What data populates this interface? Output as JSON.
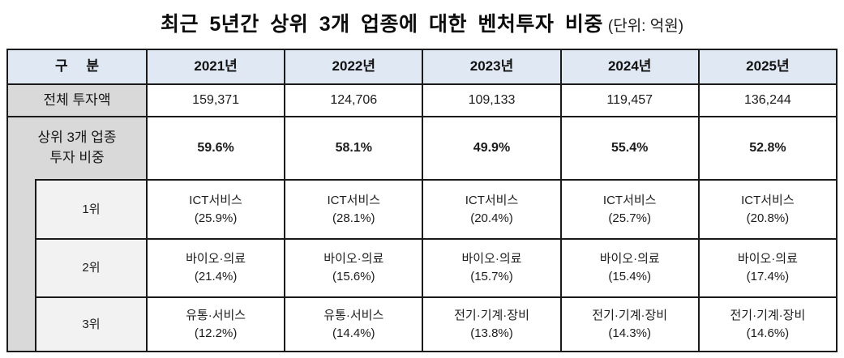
{
  "title": {
    "main": "최근 5년간 상위 3개 업종에 대한 벤처투자 비중",
    "unit": "(단위: 억원)"
  },
  "colors": {
    "header_bg": "#dfe8f3",
    "label_bg": "#d9d9d9",
    "rank_bg": "#f2f2f2",
    "border": "#1a1a1a"
  },
  "table": {
    "corner_label": "구 분",
    "years": [
      "2021년",
      "2022년",
      "2023년",
      "2024년",
      "2025년"
    ],
    "total_row": {
      "label": "전체 투자액",
      "values": [
        "159,371",
        "124,706",
        "109,133",
        "119,457",
        "136,244"
      ]
    },
    "share_row": {
      "label_line1": "상위 3개 업종",
      "label_line2": "투자 비중",
      "values": [
        "59.6%",
        "58.1%",
        "49.9%",
        "55.4%",
        "52.8%"
      ]
    },
    "rank_rows": [
      {
        "label": "1위",
        "cells": [
          {
            "name": "ICT서비스",
            "share": "(25.9%)"
          },
          {
            "name": "ICT서비스",
            "share": "(28.1%)"
          },
          {
            "name": "ICT서비스",
            "share": "(20.4%)"
          },
          {
            "name": "ICT서비스",
            "share": "(25.7%)"
          },
          {
            "name": "ICT서비스",
            "share": "(20.8%)"
          }
        ]
      },
      {
        "label": "2위",
        "cells": [
          {
            "name": "바이오·의료",
            "share": "(21.4%)"
          },
          {
            "name": "바이오·의료",
            "share": "(15.6%)"
          },
          {
            "name": "바이오·의료",
            "share": "(15.7%)"
          },
          {
            "name": "바이오·의료",
            "share": "(15.4%)"
          },
          {
            "name": "바이오·의료",
            "share": "(17.4%)"
          }
        ]
      },
      {
        "label": "3위",
        "cells": [
          {
            "name": "유통·서비스",
            "share": "(12.2%)"
          },
          {
            "name": "유통·서비스",
            "share": "(14.4%)"
          },
          {
            "name": "전기·기계·장비",
            "share": "(13.8%)"
          },
          {
            "name": "전기·기계·장비",
            "share": "(14.3%)"
          },
          {
            "name": "전기·기계·장비",
            "share": "(14.6%)"
          }
        ]
      }
    ]
  }
}
